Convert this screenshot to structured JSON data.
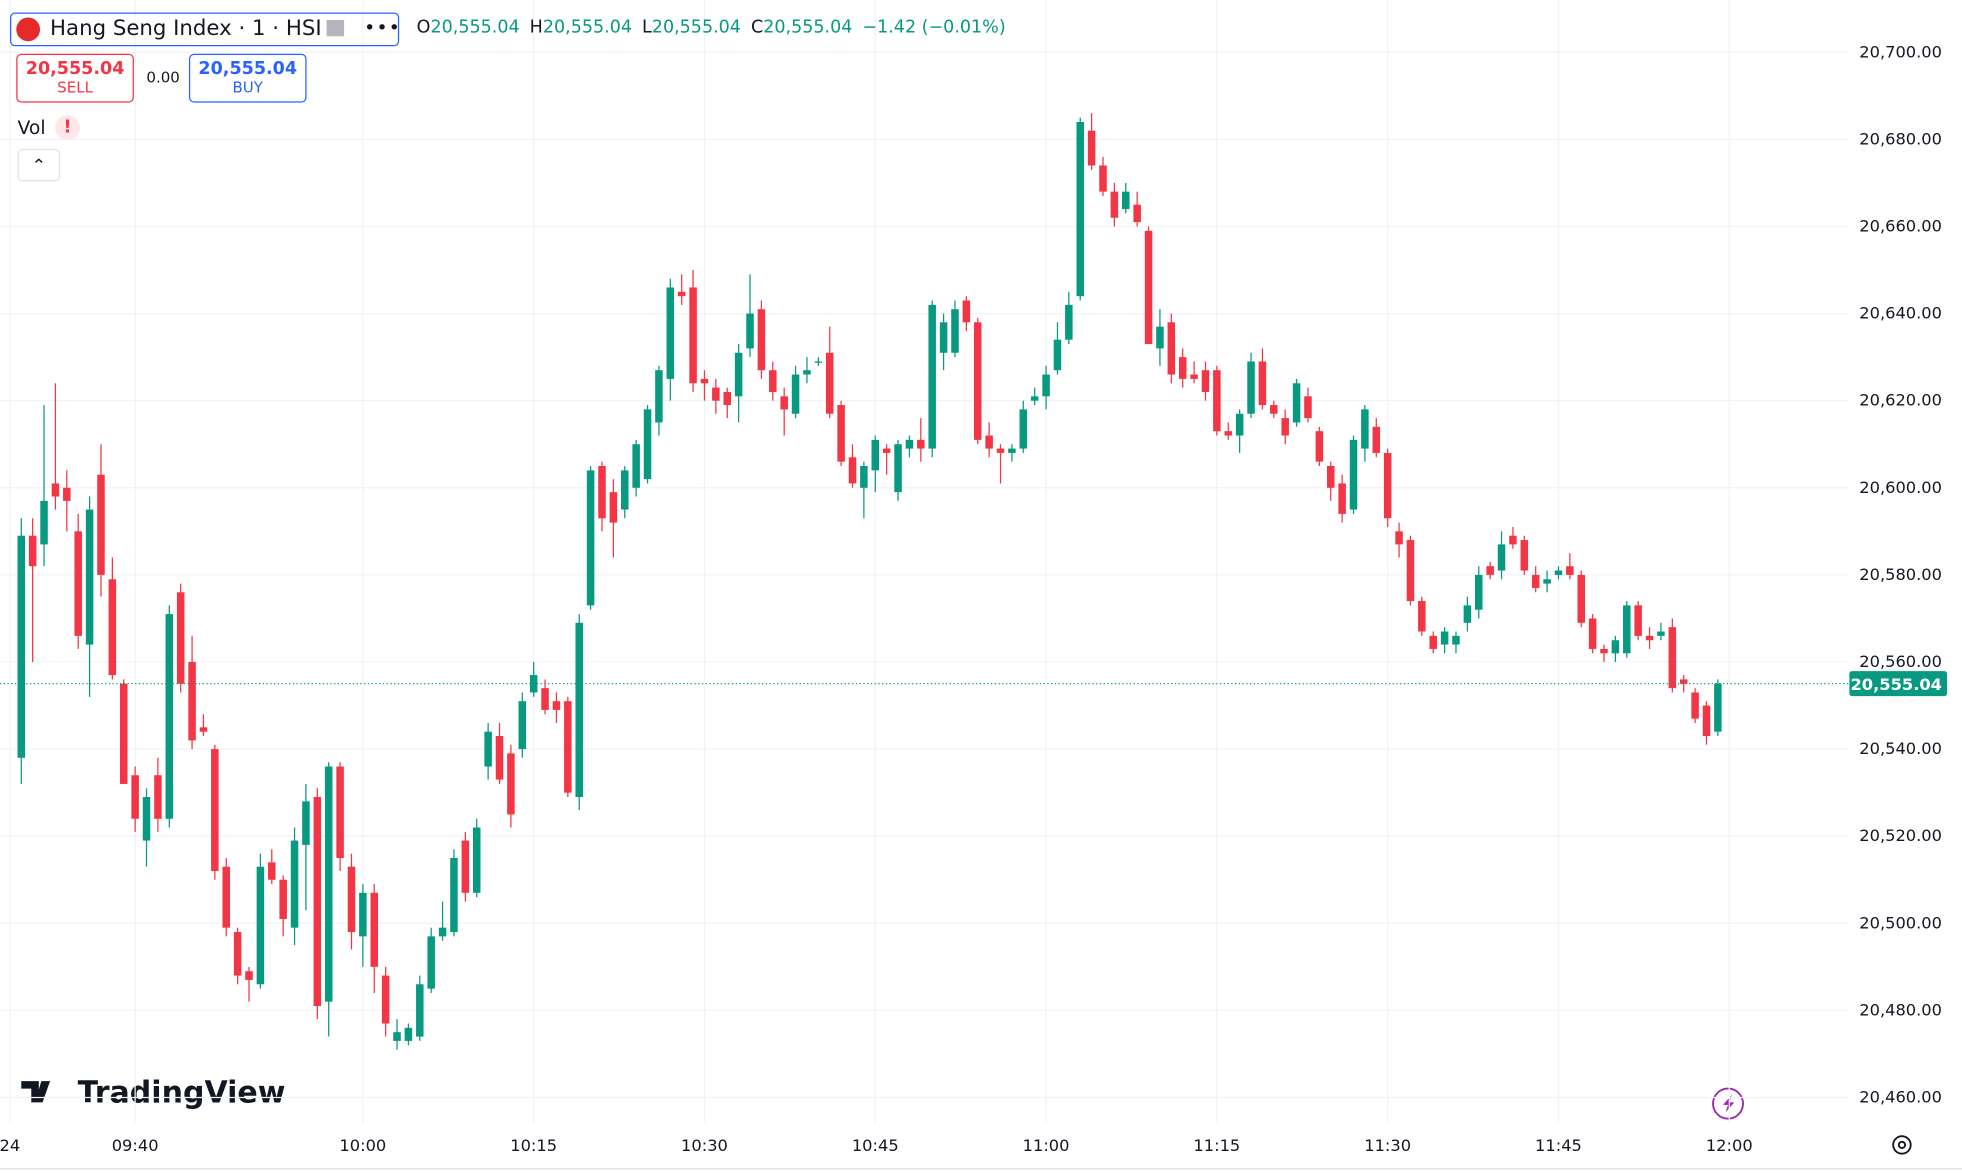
{
  "header": {
    "symbol": "Hang Seng Index · 1 · HSI",
    "ohlc": [
      {
        "key": "O",
        "value": "20,555.04"
      },
      {
        "key": "H",
        "value": "20,555.04"
      },
      {
        "key": "L",
        "value": "20,555.04"
      },
      {
        "key": "C",
        "value": "20,555.04"
      }
    ],
    "change": "−1.42 (−0.01%)",
    "sell_price": "20,555.04",
    "sell": "SELL",
    "spread": "0.00",
    "buy_price": "20,555.04",
    "buy": "BUY",
    "vol": "Vol",
    "vol_alert": "!",
    "logo": "TradingView"
  },
  "chart_data": {
    "type": "candlestick",
    "up_color": "#089981",
    "down_color": "#f23645",
    "grid": true,
    "open": [
      20538,
      20589,
      20587,
      20601,
      20600,
      20590,
      20564,
      20603,
      20579,
      20555,
      20534,
      20519,
      20534,
      20524,
      20576,
      20560,
      20545,
      20540,
      20513,
      20498,
      20489,
      20486,
      20514,
      20510,
      20499,
      20518,
      20529,
      20482,
      20536,
      20513,
      20497,
      20507,
      20488,
      20473,
      20473,
      20474,
      20485,
      20497,
      20498,
      20519,
      20507,
      20536,
      20543,
      20539,
      20540,
      20553,
      20554,
      20551,
      20551,
      20529,
      20573,
      20605,
      20599,
      20595,
      20600,
      20602,
      20615,
      20625,
      20645,
      20646,
      20625,
      20623,
      20622,
      20621,
      20632,
      20641,
      20627,
      20621,
      20617,
      20626,
      20629,
      20631,
      20619,
      20607,
      20600,
      20604,
      20609,
      20599,
      20609,
      20611,
      20609,
      20631,
      20631,
      20643,
      20638,
      20612,
      20609,
      20608,
      20609,
      20620,
      20621,
      20627,
      20634,
      20644,
      20682,
      20674,
      20668,
      20664,
      20665,
      20659,
      20632,
      20638,
      20630,
      20626,
      20627,
      20627,
      20613,
      20612,
      20617,
      20629,
      20619,
      20616,
      20615,
      20621,
      20613,
      20605,
      20601,
      20595,
      20609,
      20614,
      20608,
      20590,
      20588,
      20574,
      20566,
      20564,
      20564,
      20569,
      20572,
      20582,
      20581,
      20589,
      20588,
      20580,
      20578,
      20580,
      20582,
      20580,
      20570,
      20563,
      20562,
      20562,
      20573,
      20566,
      20566,
      20568,
      20556,
      20553,
      20550,
      20544
    ],
    "high": [
      20593,
      20593,
      20619,
      20624,
      20604,
      20594,
      20598,
      20610,
      20584,
      20556,
      20536,
      20531,
      20538,
      20573,
      20578,
      20566,
      20548,
      20541,
      20515,
      20499,
      20490,
      20516,
      20517,
      20511,
      20522,
      20532,
      20531,
      20537,
      20537,
      20516,
      20509,
      20509,
      20490,
      20478,
      20477,
      20488,
      20499,
      20505,
      20517,
      20521,
      20524,
      20546,
      20546,
      20541,
      20553,
      20560,
      20556,
      20553,
      20552,
      20571,
      20605,
      20606,
      20602,
      20605,
      20611,
      20619,
      20628,
      20648,
      20649,
      20650,
      20627,
      20625,
      20623,
      20633,
      20649,
      20643,
      20629,
      20623,
      20628,
      20630,
      20630,
      20637,
      20620,
      20610,
      20606,
      20612,
      20610,
      20611,
      20612,
      20616,
      20643,
      20640,
      20643,
      20644,
      20639,
      20615,
      20610,
      20610,
      20620,
      20623,
      20628,
      20638,
      20645,
      20685,
      20686,
      20676,
      20670,
      20670,
      20668,
      20660,
      20641,
      20640,
      20632,
      20629,
      20629,
      20628,
      20615,
      20618,
      20631,
      20632,
      20620,
      20618,
      20625,
      20623,
      20614,
      20606,
      20603,
      20612,
      20619,
      20616,
      20609,
      20592,
      20589,
      20575,
      20567,
      20568,
      20567,
      20575,
      20582,
      20583,
      20590,
      20591,
      20589,
      20582,
      20581,
      20582,
      20585,
      20581,
      20571,
      20564,
      20566,
      20574,
      20574,
      20568,
      20569,
      20570,
      20557,
      20554,
      20551,
      20556
    ],
    "low": [
      20532,
      20560,
      20582,
      20595,
      20590,
      20563,
      20552,
      20575,
      20556,
      20532,
      20521,
      20513,
      20521,
      20522,
      20553,
      20540,
      20543,
      20510,
      20497,
      20486,
      20482,
      20485,
      20509,
      20497,
      20495,
      20503,
      20478,
      20474,
      20512,
      20494,
      20490,
      20484,
      20474,
      20471,
      20472,
      20473,
      20484,
      20496,
      20497,
      20505,
      20506,
      20533,
      20532,
      20522,
      20538,
      20552,
      20548,
      20546,
      20529,
      20526,
      20572,
      20590,
      20584,
      20593,
      20598,
      20601,
      20612,
      20620,
      20642,
      20622,
      20620,
      20617,
      20616,
      20615,
      20630,
      20625,
      20620,
      20612,
      20616,
      20624,
      20628,
      20616,
      20605,
      20600,
      20593,
      20599,
      20603,
      20597,
      20607,
      20606,
      20607,
      20627,
      20630,
      20636,
      20610,
      20607,
      20601,
      20606,
      20608,
      20619,
      20618,
      20626,
      20633,
      20643,
      20673,
      20667,
      20660,
      20663,
      20660,
      20633,
      20628,
      20624,
      20623,
      20624,
      20620,
      20612,
      20611,
      20608,
      20616,
      20618,
      20616,
      20610,
      20614,
      20615,
      20605,
      20597,
      20592,
      20594,
      20606,
      20607,
      20591,
      20584,
      20573,
      20566,
      20562,
      20562,
      20562,
      20567,
      20570,
      20579,
      20579,
      20586,
      20580,
      20576,
      20576,
      20579,
      20579,
      20568,
      20562,
      20560,
      20560,
      20561,
      20565,
      20563,
      20565,
      20553,
      20553,
      20546,
      20541,
      20543
    ],
    "close": [
      20589,
      20582,
      20597,
      20598,
      20597,
      20566,
      20595,
      20580,
      20557,
      20532,
      20524,
      20529,
      20524,
      20571,
      20555,
      20542,
      20544,
      20512,
      20499,
      20488,
      20487,
      20513,
      20510,
      20501,
      20519,
      20528,
      20481,
      20536,
      20515,
      20498,
      20507,
      20490,
      20477,
      20475,
      20476,
      20486,
      20497,
      20499,
      20515,
      20507,
      20522,
      20544,
      20533,
      20525,
      20551,
      20557,
      20549,
      20549,
      20530,
      20569,
      20604,
      20593,
      20592,
      20604,
      20610,
      20618,
      20627,
      20646,
      20644,
      20624,
      20624,
      20620,
      20619,
      20631,
      20640,
      20627,
      20622,
      20618,
      20626,
      20627,
      20629,
      20617,
      20606,
      20601,
      20605,
      20611,
      20608,
      20610,
      20611,
      20609,
      20642,
      20638,
      20641,
      20638,
      20611,
      20609,
      20608,
      20609,
      20618,
      20621,
      20626,
      20634,
      20642,
      20684,
      20674,
      20668,
      20662,
      20668,
      20661,
      20633,
      20637,
      20626,
      20625,
      20625,
      20622,
      20613,
      20612,
      20617,
      20629,
      20619,
      20617,
      20612,
      20624,
      20616,
      20606,
      20600,
      20594,
      20611,
      20618,
      20608,
      20593,
      20587,
      20574,
      20567,
      20563,
      20567,
      20566,
      20573,
      20580,
      20580,
      20587,
      20587,
      20581,
      20577,
      20579,
      20581,
      20580,
      20569,
      20563,
      20562,
      20565,
      20573,
      20566,
      20565,
      20567,
      20554,
      20555,
      20547,
      20543,
      20555.04
    ],
    "ylim": [
      20454,
      20712
    ],
    "yticks": [
      {
        "value": 20460,
        "label": "20,460.00"
      },
      {
        "value": 20480,
        "label": "20,480.00"
      },
      {
        "value": 20500,
        "label": "20,500.00"
      },
      {
        "value": 20520,
        "label": "20,520.00"
      },
      {
        "value": 20540,
        "label": "20,540.00"
      },
      {
        "value": 20560,
        "label": "20,560.00"
      },
      {
        "value": 20580,
        "label": "20,580.00"
      },
      {
        "value": 20600,
        "label": "20,600.00"
      },
      {
        "value": 20620,
        "label": "20,620.00"
      },
      {
        "value": 20640,
        "label": "20,640.00"
      },
      {
        "value": 20660,
        "label": "20,660.00"
      },
      {
        "value": 20680,
        "label": "20,680.00"
      },
      {
        "value": 20700,
        "label": "20,700.00"
      }
    ],
    "xticks": [
      {
        "value": -1,
        "label": "24"
      },
      {
        "value": 10,
        "label": "09:40"
      },
      {
        "value": 30,
        "label": "10:00"
      },
      {
        "value": 45,
        "label": "10:15"
      },
      {
        "value": 60,
        "label": "10:30"
      },
      {
        "value": 75,
        "label": "10:45"
      },
      {
        "value": 90,
        "label": "11:00"
      },
      {
        "value": 105,
        "label": "11:15"
      },
      {
        "value": 120,
        "label": "11:30"
      },
      {
        "value": 135,
        "label": "11:45"
      },
      {
        "value": 150,
        "label": "12:00"
      }
    ],
    "last_price": {
      "value": 20555.04,
      "label": "20,555.04"
    }
  }
}
